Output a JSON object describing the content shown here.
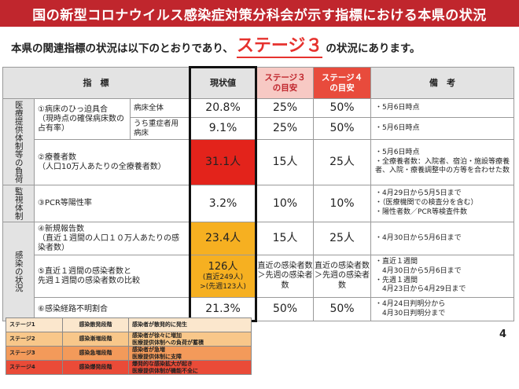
{
  "title": "国の新型コロナウイルス感染症対策分科会が示す指標における本県の状況",
  "subtitle": {
    "before": "本県の関連指標の状況は以下のとおりであり、",
    "stage": "ステージ３",
    "after": "の状況にあります。"
  },
  "table": {
    "headers": {
      "indicator": "指　標",
      "current": "現状値",
      "stage3_line1": "ステージ３",
      "stage3_line2": "の目安",
      "stage4_line1": "ステージ４",
      "stage4_line2": "の目安",
      "remarks": "備　考"
    },
    "categories": {
      "medical": "医療提供体制等の負荷",
      "monitoring": "監視体制",
      "infection": "感染の状況"
    },
    "rows": [
      {
        "indicator": "①病床のひっ迫具合\n（現時点の確保病床数の占有率）",
        "sub": "病床全体",
        "current": "20.8%",
        "stage3": "25%",
        "stage4": "50%",
        "remarks": "・5月6日時点"
      },
      {
        "sub": "うち重症者用病床",
        "current": "9.1%",
        "stage3": "25%",
        "stage4": "50%",
        "remarks": "・5月6日時点"
      },
      {
        "indicator": "②療養者数\n（人口10万人あたりの全療養者数）",
        "current": "31.1人",
        "stage3": "15人",
        "stage4": "25人",
        "remarks": "・5月6日時点\n・全療養者数：入院者、宿泊・施設等療養者、入院・療養調整中の方等を合わせた数"
      },
      {
        "indicator": "③PCR等陽性率",
        "current": "3.2%",
        "stage3": "10%",
        "stage4": "10%",
        "remarks": "・4月29日から5月5日まで\n・（医療機関での検査分を含む）\n・陽性者数／PCR等検査件数"
      },
      {
        "indicator": "④新規報告数\n（直近１週間の人口１０万人あたりの感染者数）",
        "current": "23.4人",
        "stage3": "15人",
        "stage4": "25人",
        "remarks": "・4月30日から5月6日まで"
      },
      {
        "indicator": "⑤直近１週間の感染者数と\n先週１週間の感染者数の比較",
        "current_main": "126人",
        "current_sub1": "(直近249人)",
        "current_sub2": ">(先週123人)",
        "stage3": "直近の感染者数＞先週の感染者数",
        "stage4": "直近の感染者数＞先週の感染者数",
        "remarks": "・直近１週間\n　4月30日から5月6日まで\n・先週１週間\n　4月23日から4月29日まで"
      },
      {
        "indicator": "⑥感染経路不明割合",
        "current": "21.3%",
        "stage3": "50%",
        "stage4": "50%",
        "remarks": "・4月24日判明分から\n　4月30日判明分まで"
      }
    ]
  },
  "legend": [
    {
      "stage": "ステージ1",
      "phase": "感染散発段階",
      "desc": "感染者が散発的に発生",
      "color": "#fbe7cd"
    },
    {
      "stage": "ステージ2",
      "phase": "感染漸増段階",
      "desc": "感染者が徐々に増加\n医療提供体制への負荷が蓄積",
      "color": "#f8c78a"
    },
    {
      "stage": "ステージ3",
      "phase": "感染急増段階",
      "desc": "感染者が急増\n医療提供体制に支障",
      "color": "#f39a5a"
    },
    {
      "stage": "ステージ4",
      "phase": "感染爆発段階",
      "desc": "爆発的な感染拡大が起き\n医療提供体制が機能不全に",
      "color": "#ea4b38"
    }
  ],
  "page_number": "4",
  "colors": {
    "title_bg": "#c0262d",
    "stage_text": "#e6322e",
    "current_red": "#e3231b",
    "current_orange": "#f6b021"
  }
}
